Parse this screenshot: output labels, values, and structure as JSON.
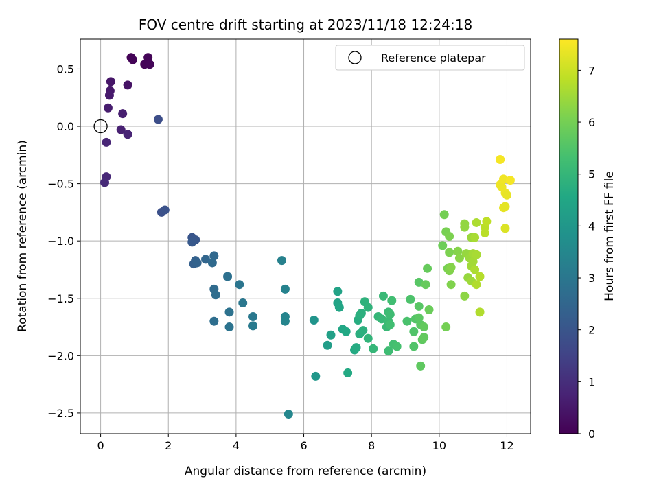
{
  "chart_data": {
    "type": "scatter",
    "title": "FOV centre drift starting at 2023/11/18 12:24:18",
    "xlabel": "Angular distance from reference (arcmin)",
    "ylabel": "Rotation from reference (arcmin)",
    "xlim": [
      -0.6,
      12.7
    ],
    "ylim": [
      -2.68,
      0.76
    ],
    "xticks": [
      0,
      2,
      4,
      6,
      8,
      10,
      12
    ],
    "yticks": [
      -2.5,
      -2.0,
      -1.5,
      -1.0,
      -0.5,
      0.0,
      0.5
    ],
    "grid": true,
    "legend": {
      "placement": "top-right",
      "entries": [
        "Reference platepar"
      ]
    },
    "colorbar": {
      "label": "Hours from first FF file",
      "range": [
        0,
        7.6
      ],
      "ticks": [
        0,
        1,
        2,
        3,
        4,
        5,
        6,
        7
      ],
      "colormap": "viridis"
    },
    "reference_point": {
      "x": 0,
      "y": 0
    },
    "points": [
      [
        0.9,
        0.6,
        0.05
      ],
      [
        0.95,
        0.58,
        0.06
      ],
      [
        1.4,
        0.6,
        0.08
      ],
      [
        1.3,
        0.54,
        0.07
      ],
      [
        1.45,
        0.54,
        0.09
      ],
      [
        0.8,
        0.36,
        0.4
      ],
      [
        0.3,
        0.39,
        0.45
      ],
      [
        0.28,
        0.31,
        0.5
      ],
      [
        0.26,
        0.27,
        0.55
      ],
      [
        0.22,
        0.16,
        0.6
      ],
      [
        0.65,
        0.11,
        0.65
      ],
      [
        0.6,
        -0.03,
        0.7
      ],
      [
        0.8,
        -0.07,
        0.75
      ],
      [
        0.17,
        -0.14,
        0.8
      ],
      [
        0.17,
        -0.44,
        0.85
      ],
      [
        0.12,
        -0.49,
        0.9
      ],
      [
        1.7,
        0.06,
        1.8
      ],
      [
        1.8,
        -0.75,
        1.85
      ],
      [
        1.9,
        -0.73,
        1.9
      ],
      [
        2.7,
        -0.97,
        2.0
      ],
      [
        2.8,
        -0.99,
        2.05
      ],
      [
        2.7,
        -1.01,
        2.1
      ],
      [
        2.75,
        -1.2,
        2.3
      ],
      [
        2.8,
        -1.17,
        2.35
      ],
      [
        2.85,
        -1.19,
        2.4
      ],
      [
        3.1,
        -1.16,
        2.5
      ],
      [
        3.35,
        -1.13,
        2.55
      ],
      [
        3.3,
        -1.19,
        2.6
      ],
      [
        3.35,
        -1.42,
        2.65
      ],
      [
        3.4,
        -1.47,
        2.7
      ],
      [
        3.35,
        -1.7,
        2.75
      ],
      [
        3.75,
        -1.31,
        2.8
      ],
      [
        3.8,
        -1.62,
        2.85
      ],
      [
        3.8,
        -1.75,
        2.9
      ],
      [
        4.1,
        -1.38,
        2.95
      ],
      [
        4.2,
        -1.54,
        3.0
      ],
      [
        4.5,
        -1.66,
        3.05
      ],
      [
        4.5,
        -1.74,
        3.1
      ],
      [
        5.35,
        -1.17,
        3.3
      ],
      [
        5.45,
        -1.42,
        3.35
      ],
      [
        5.45,
        -1.66,
        3.4
      ],
      [
        5.45,
        -1.7,
        3.45
      ],
      [
        5.55,
        -2.51,
        3.5
      ],
      [
        6.3,
        -1.69,
        3.9
      ],
      [
        6.35,
        -2.18,
        4.0
      ],
      [
        6.7,
        -1.91,
        4.2
      ],
      [
        6.8,
        -1.82,
        4.3
      ],
      [
        7.0,
        -1.44,
        4.35
      ],
      [
        7.0,
        -1.54,
        4.4
      ],
      [
        7.05,
        -1.58,
        4.45
      ],
      [
        7.15,
        -1.77,
        4.5
      ],
      [
        7.25,
        -1.79,
        4.55
      ],
      [
        7.3,
        -2.15,
        4.6
      ],
      [
        7.5,
        -1.95,
        4.6
      ],
      [
        7.55,
        -1.93,
        4.65
      ],
      [
        7.6,
        -1.69,
        4.7
      ],
      [
        7.65,
        -1.81,
        4.75
      ],
      [
        7.65,
        -1.65,
        4.75
      ],
      [
        7.7,
        -1.63,
        4.8
      ],
      [
        7.75,
        -1.78,
        4.8
      ],
      [
        7.8,
        -1.53,
        4.85
      ],
      [
        7.9,
        -1.58,
        4.9
      ],
      [
        7.9,
        -1.85,
        4.95
      ],
      [
        8.05,
        -1.94,
        5.0
      ],
      [
        8.2,
        -1.66,
        5.0
      ],
      [
        8.3,
        -1.68,
        5.05
      ],
      [
        8.35,
        -1.48,
        5.1
      ],
      [
        8.45,
        -1.75,
        5.1
      ],
      [
        8.5,
        -1.62,
        5.15
      ],
      [
        8.5,
        -1.7,
        5.15
      ],
      [
        8.55,
        -1.64,
        5.2
      ],
      [
        8.5,
        -1.96,
        5.2
      ],
      [
        8.55,
        -1.73,
        5.25
      ],
      [
        8.6,
        -1.52,
        5.25
      ],
      [
        8.65,
        -1.9,
        5.3
      ],
      [
        8.75,
        -1.92,
        5.35
      ],
      [
        9.05,
        -1.7,
        5.4
      ],
      [
        9.15,
        -1.51,
        5.45
      ],
      [
        9.25,
        -1.79,
        5.5
      ],
      [
        9.25,
        -1.92,
        5.5
      ],
      [
        9.3,
        -1.68,
        5.55
      ],
      [
        9.4,
        -1.36,
        5.6
      ],
      [
        9.4,
        -1.57,
        5.6
      ],
      [
        9.4,
        -1.67,
        5.65
      ],
      [
        9.45,
        -1.73,
        5.65
      ],
      [
        9.45,
        -2.09,
        5.7
      ],
      [
        9.5,
        -1.86,
        5.7
      ],
      [
        9.55,
        -1.84,
        5.75
      ],
      [
        9.55,
        -1.75,
        5.75
      ],
      [
        9.6,
        -1.38,
        5.8
      ],
      [
        9.65,
        -1.24,
        5.8
      ],
      [
        9.7,
        -1.6,
        5.85
      ],
      [
        10.1,
        -1.04,
        5.9
      ],
      [
        10.15,
        -0.77,
        6.0
      ],
      [
        10.2,
        -1.75,
        6.0
      ],
      [
        10.2,
        -0.92,
        6.05
      ],
      [
        10.25,
        -1.24,
        6.05
      ],
      [
        10.3,
        -0.96,
        6.1
      ],
      [
        10.3,
        -1.1,
        6.1
      ],
      [
        10.3,
        -1.26,
        6.15
      ],
      [
        10.35,
        -1.38,
        6.15
      ],
      [
        10.35,
        -1.23,
        6.2
      ],
      [
        10.55,
        -1.09,
        6.2
      ],
      [
        10.6,
        -1.15,
        6.25
      ],
      [
        10.75,
        -1.48,
        6.3
      ],
      [
        10.75,
        -0.85,
        6.35
      ],
      [
        10.75,
        -0.88,
        6.35
      ],
      [
        10.8,
        -1.11,
        6.4
      ],
      [
        10.85,
        -1.32,
        6.4
      ],
      [
        10.9,
        -1.15,
        6.45
      ],
      [
        10.95,
        -0.97,
        6.45
      ],
      [
        10.95,
        -1.35,
        6.5
      ],
      [
        10.95,
        -1.22,
        6.5
      ],
      [
        11.0,
        -1.18,
        6.55
      ],
      [
        11.0,
        -1.11,
        6.55
      ],
      [
        11.05,
        -0.97,
        6.6
      ],
      [
        11.1,
        -1.12,
        6.6
      ],
      [
        11.1,
        -0.84,
        6.65
      ],
      [
        11.05,
        -1.25,
        6.65
      ],
      [
        11.1,
        -1.38,
        6.7
      ],
      [
        11.2,
        -1.62,
        6.7
      ],
      [
        11.2,
        -1.31,
        6.75
      ],
      [
        11.35,
        -0.88,
        6.8
      ],
      [
        11.35,
        -0.93,
        6.8
      ],
      [
        11.4,
        -0.83,
        6.85
      ],
      [
        11.8,
        -0.29,
        7.5
      ],
      [
        11.8,
        -0.51,
        7.45
      ],
      [
        11.85,
        -0.53,
        7.4
      ],
      [
        11.9,
        -0.46,
        7.45
      ],
      [
        11.9,
        -0.71,
        7.35
      ],
      [
        11.95,
        -0.58,
        7.4
      ],
      [
        11.95,
        -0.7,
        7.3
      ],
      [
        12.0,
        -0.6,
        7.35
      ],
      [
        11.95,
        -0.89,
        7.2
      ],
      [
        12.1,
        -0.47,
        7.5
      ]
    ]
  }
}
